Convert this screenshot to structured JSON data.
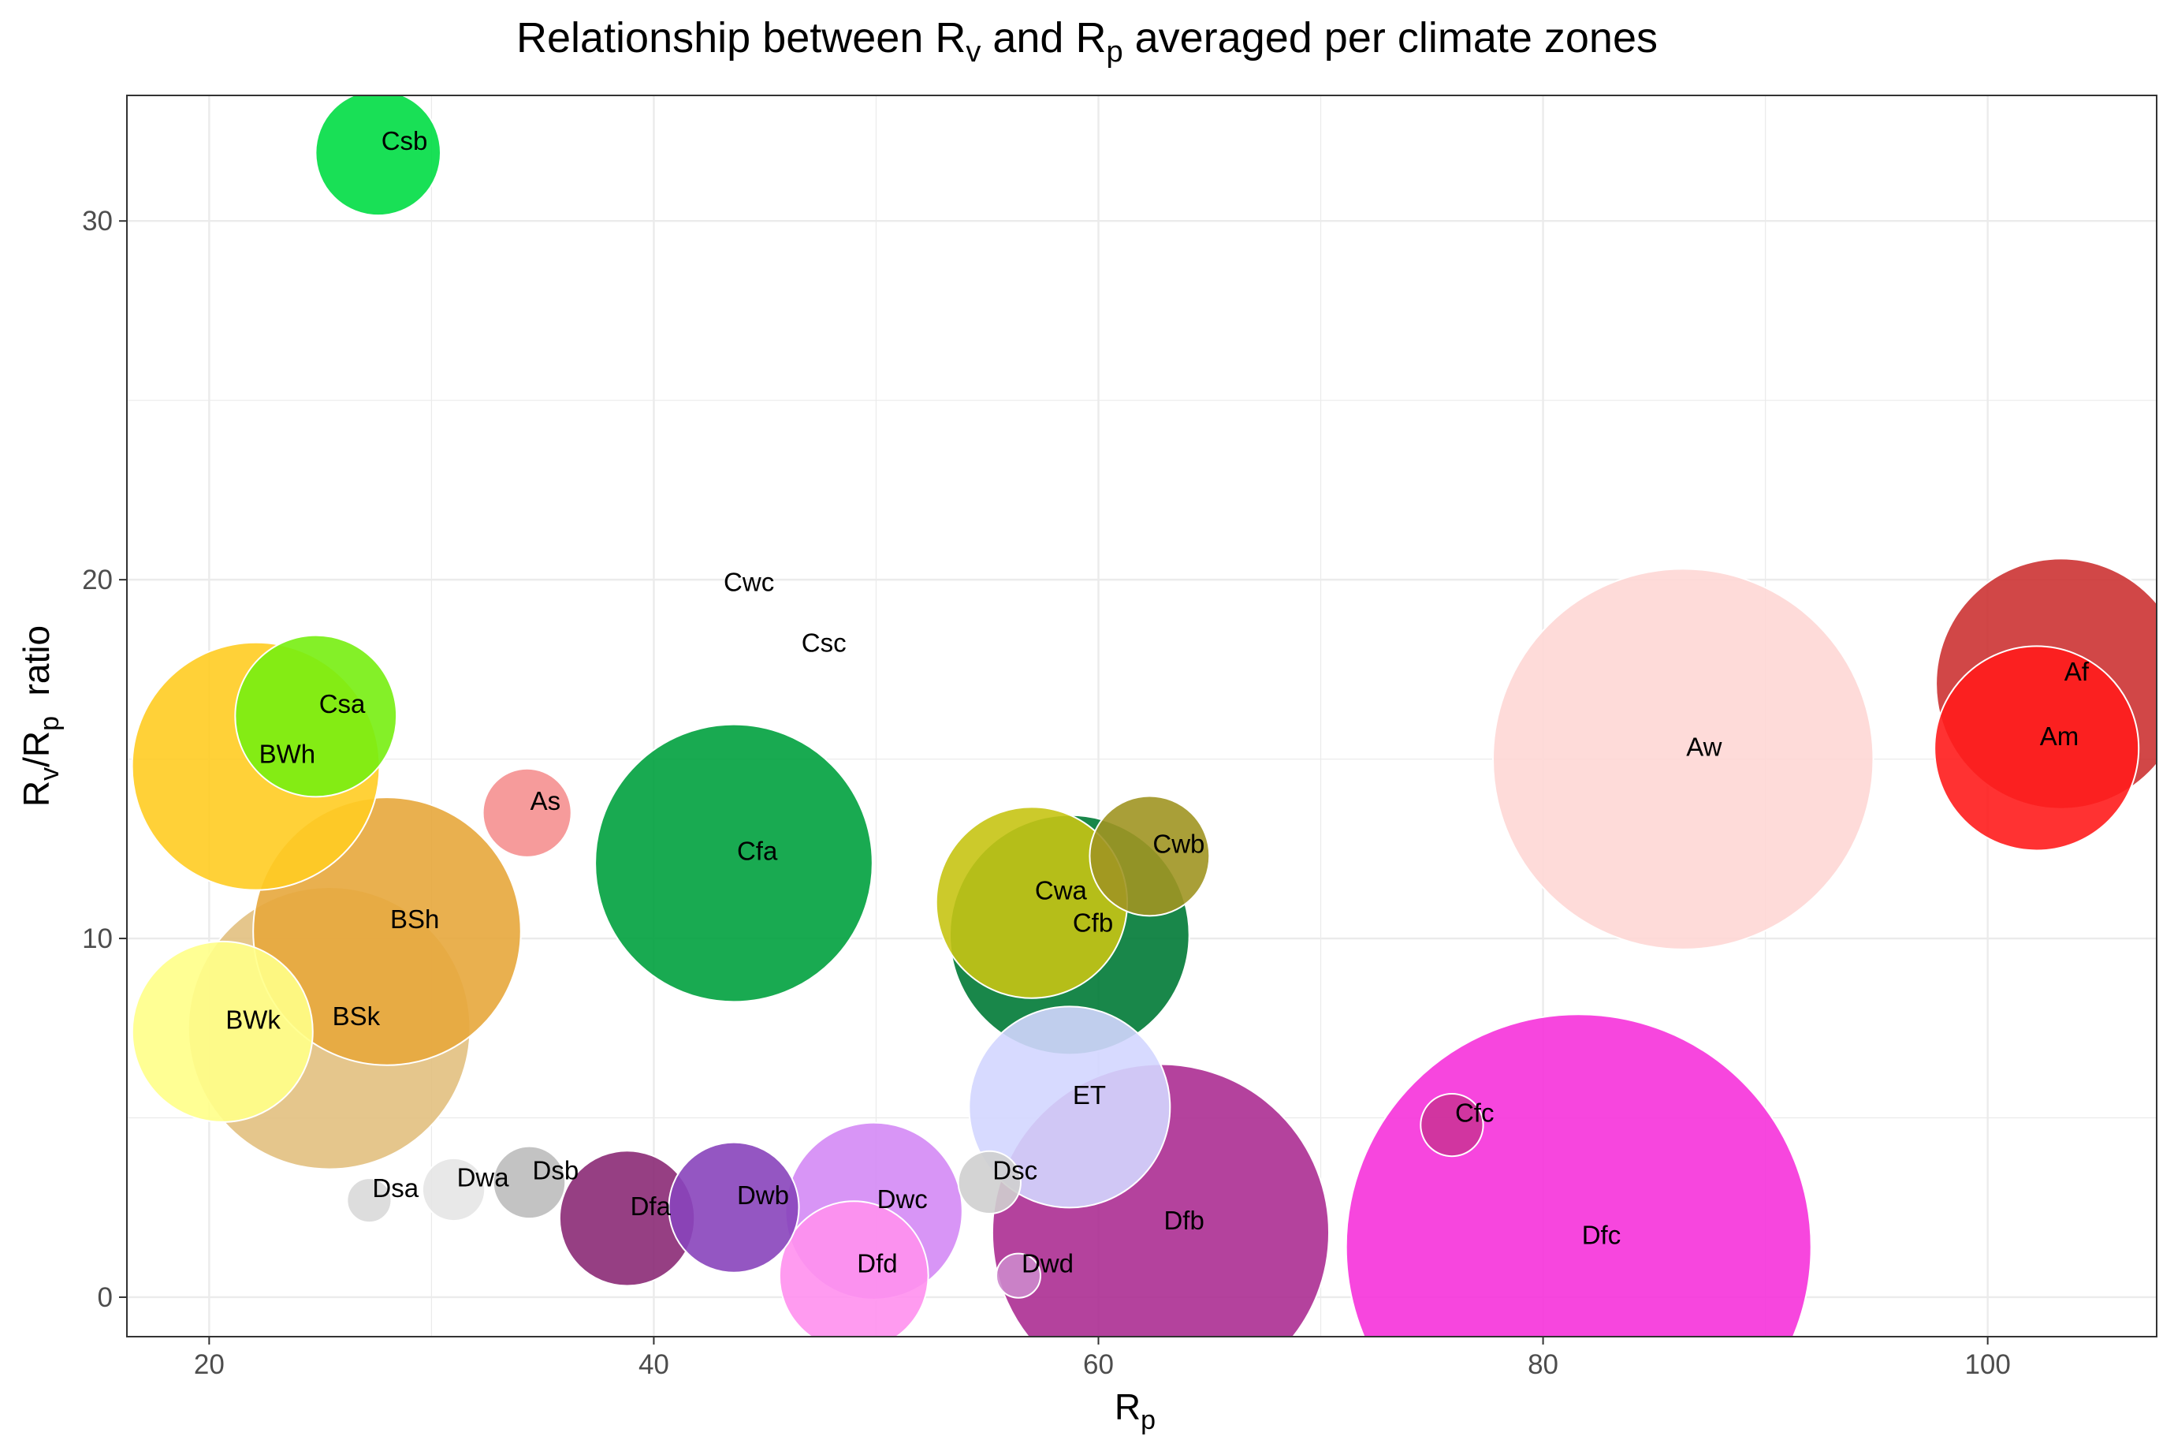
{
  "chart_data": {
    "type": "scatter",
    "title": {
      "pre": "Relationship between R",
      "sub1": "v",
      "mid": " and R",
      "sub2": "p",
      "post": " averaged per climate zones"
    },
    "xlabel": {
      "main": "R",
      "sub": "p"
    },
    "ylabel": {
      "a": "R",
      "asub": "v",
      "slash": "/R",
      "bsub": "p",
      "post": "  ratio"
    },
    "xlim": [
      16.3,
      107.6
    ],
    "ylim": [
      -1.1,
      33.5
    ],
    "xticks": [
      20,
      40,
      60,
      80,
      100
    ],
    "yticks": [
      0,
      10,
      20,
      30
    ],
    "grid": true,
    "legend": "none",
    "size_note": "bubble area proportional to zone size (unlabeled in figure)",
    "points": [
      {
        "label": "Csb",
        "x": 27.6,
        "y": 31.9,
        "size": 12,
        "color": "#00dd44"
      },
      {
        "label": "Cwc",
        "x": 43.0,
        "y": 19.6,
        "size": 0,
        "color": "#d9d9d9"
      },
      {
        "label": "Csc",
        "x": 46.5,
        "y": 17.9,
        "size": 0,
        "color": "#d9d9d9"
      },
      {
        "label": "Csa",
        "x": 24.8,
        "y": 16.2,
        "size": 20,
        "color": "#77ee11"
      },
      {
        "label": "BWh",
        "x": 22.1,
        "y": 14.8,
        "size": 47,
        "color": "#ffcc22"
      },
      {
        "label": "As",
        "x": 34.3,
        "y": 13.5,
        "size": 6,
        "color": "#f59090"
      },
      {
        "label": "Cfa",
        "x": 43.6,
        "y": 12.1,
        "size": 59,
        "color": "#00a13e"
      },
      {
        "label": "Cwb",
        "x": 62.3,
        "y": 12.3,
        "size": 11,
        "color": "#a09522"
      },
      {
        "label": "Cwa",
        "x": 57.0,
        "y": 11.0,
        "size": 28,
        "color": "#c6c414"
      },
      {
        "label": "Cfb",
        "x": 58.7,
        "y": 10.1,
        "size": 44,
        "color": "#007a36"
      },
      {
        "label": "BSh",
        "x": 28.0,
        "y": 10.2,
        "size": 55,
        "color": "#e7a73c"
      },
      {
        "label": "BWk",
        "x": 20.6,
        "y": 7.4,
        "size": 25,
        "color": "#ffff88"
      },
      {
        "label": "BSk",
        "x": 25.4,
        "y": 7.5,
        "size": 61,
        "color": "#e2c080"
      },
      {
        "label": "Aw",
        "x": 86.3,
        "y": 15.0,
        "size": 111,
        "color": "#fed7d5"
      },
      {
        "label": "Af",
        "x": 103.3,
        "y": 17.1,
        "size": 48,
        "color": "#cc3333"
      },
      {
        "label": "Am",
        "x": 102.2,
        "y": 15.3,
        "size": 32,
        "color": "#ff1c1c"
      },
      {
        "label": "ET",
        "x": 58.7,
        "y": 5.3,
        "size": 31,
        "color": "#d3d6ff"
      },
      {
        "label": "Cfc",
        "x": 75.9,
        "y": 4.8,
        "size": 3,
        "color": "#cc3399"
      },
      {
        "label": "Dfb",
        "x": 62.8,
        "y": 1.8,
        "size": 87,
        "color": "#ac2d92"
      },
      {
        "label": "Dfc",
        "x": 81.6,
        "y": 1.4,
        "size": 166,
        "color": "#f632da"
      },
      {
        "label": "Dsa",
        "x": 27.2,
        "y": 2.7,
        "size": 1.5,
        "color": "#d9d9d9"
      },
      {
        "label": "Dwa",
        "x": 31.0,
        "y": 3.0,
        "size": 3,
        "color": "#e6e6e6"
      },
      {
        "label": "Dsb",
        "x": 34.4,
        "y": 3.2,
        "size": 4,
        "color": "#bdbdbd"
      },
      {
        "label": "Dfa",
        "x": 38.8,
        "y": 2.2,
        "size": 14,
        "color": "#8b2a75"
      },
      {
        "label": "Dwb",
        "x": 43.6,
        "y": 2.5,
        "size": 13,
        "color": "#8844bb"
      },
      {
        "label": "Dwc",
        "x": 49.9,
        "y": 2.4,
        "size": 24,
        "color": "#d48af5"
      },
      {
        "label": "Dfd",
        "x": 49.0,
        "y": 0.6,
        "size": 17,
        "color": "#ff90ee"
      },
      {
        "label": "Dsc",
        "x": 55.1,
        "y": 3.2,
        "size": 3,
        "color": "#cfcfcf"
      },
      {
        "label": "Dwd",
        "x": 56.4,
        "y": 0.6,
        "size": 1.5,
        "color": "#cc88cc"
      }
    ]
  }
}
